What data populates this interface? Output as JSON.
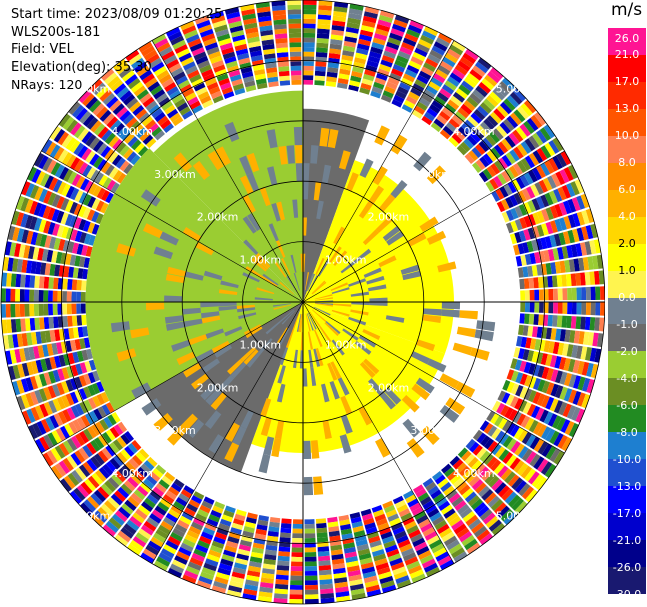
{
  "header": {
    "start_time": "Start time: 2023/08/09 01:20:25",
    "instrument": "WLS200s-181",
    "field": "Field: VEL",
    "elevation": "Elevation(deg): 35.30",
    "nrays": "NRays: 120"
  },
  "colorbar": {
    "unit": "m/s",
    "labels": [
      "26.0",
      "21.0",
      "17.0",
      "13.0",
      "10.0",
      "8.0",
      "6.0",
      "4.0",
      "2.0",
      "1.0",
      "0.0",
      "-1.0",
      "-2.0",
      "-4.0",
      "-6.0",
      "-8.0",
      "-10.0",
      "-13.0",
      "-17.0",
      "-21.0",
      "-26.0",
      "-30.0"
    ],
    "colors": [
      "#ff1493",
      "#ff0000",
      "#ff2a00",
      "#ff5500",
      "#ff7f50",
      "#ff8c00",
      "#ffb000",
      "#ffd700",
      "#ffff00",
      "#fff44f",
      "#708090",
      "#6b6b6b",
      "#9acd32",
      "#6b8e23",
      "#228b22",
      "#1e7fd0",
      "#1f4fd0",
      "#0000ff",
      "#0000cd",
      "#00008b",
      "#191970"
    ]
  },
  "chart_data": {
    "type": "ppi",
    "range_rings_km": [
      "1.00km",
      "2.00km",
      "3.00km",
      "4.00km",
      "5.00km"
    ],
    "max_range_km": 5.0,
    "nrays": 120,
    "elevation_deg": 35.3,
    "azimuth_lines_deg": [
      0,
      30,
      60,
      90,
      120,
      150,
      180,
      210,
      240,
      270,
      300,
      330
    ],
    "sectors": [
      {
        "az_from": 315,
        "az_to": 360,
        "r_to_km": 3.5,
        "value": -2.0
      },
      {
        "az_from": 0,
        "az_to": 20,
        "r_to_km": 3.2,
        "value": -1.0
      },
      {
        "az_from": 20,
        "az_to": 110,
        "r_to_km": 2.5,
        "value": 2.0
      },
      {
        "az_from": 110,
        "az_to": 200,
        "r_to_km": 2.5,
        "value": 2.0
      },
      {
        "az_from": 200,
        "az_to": 240,
        "r_to_km": 3.0,
        "value": -1.0
      },
      {
        "az_from": 240,
        "az_to": 315,
        "r_to_km": 3.6,
        "value": -2.0
      }
    ],
    "noise_ring_km": [
      3.6,
      5.0
    ]
  }
}
